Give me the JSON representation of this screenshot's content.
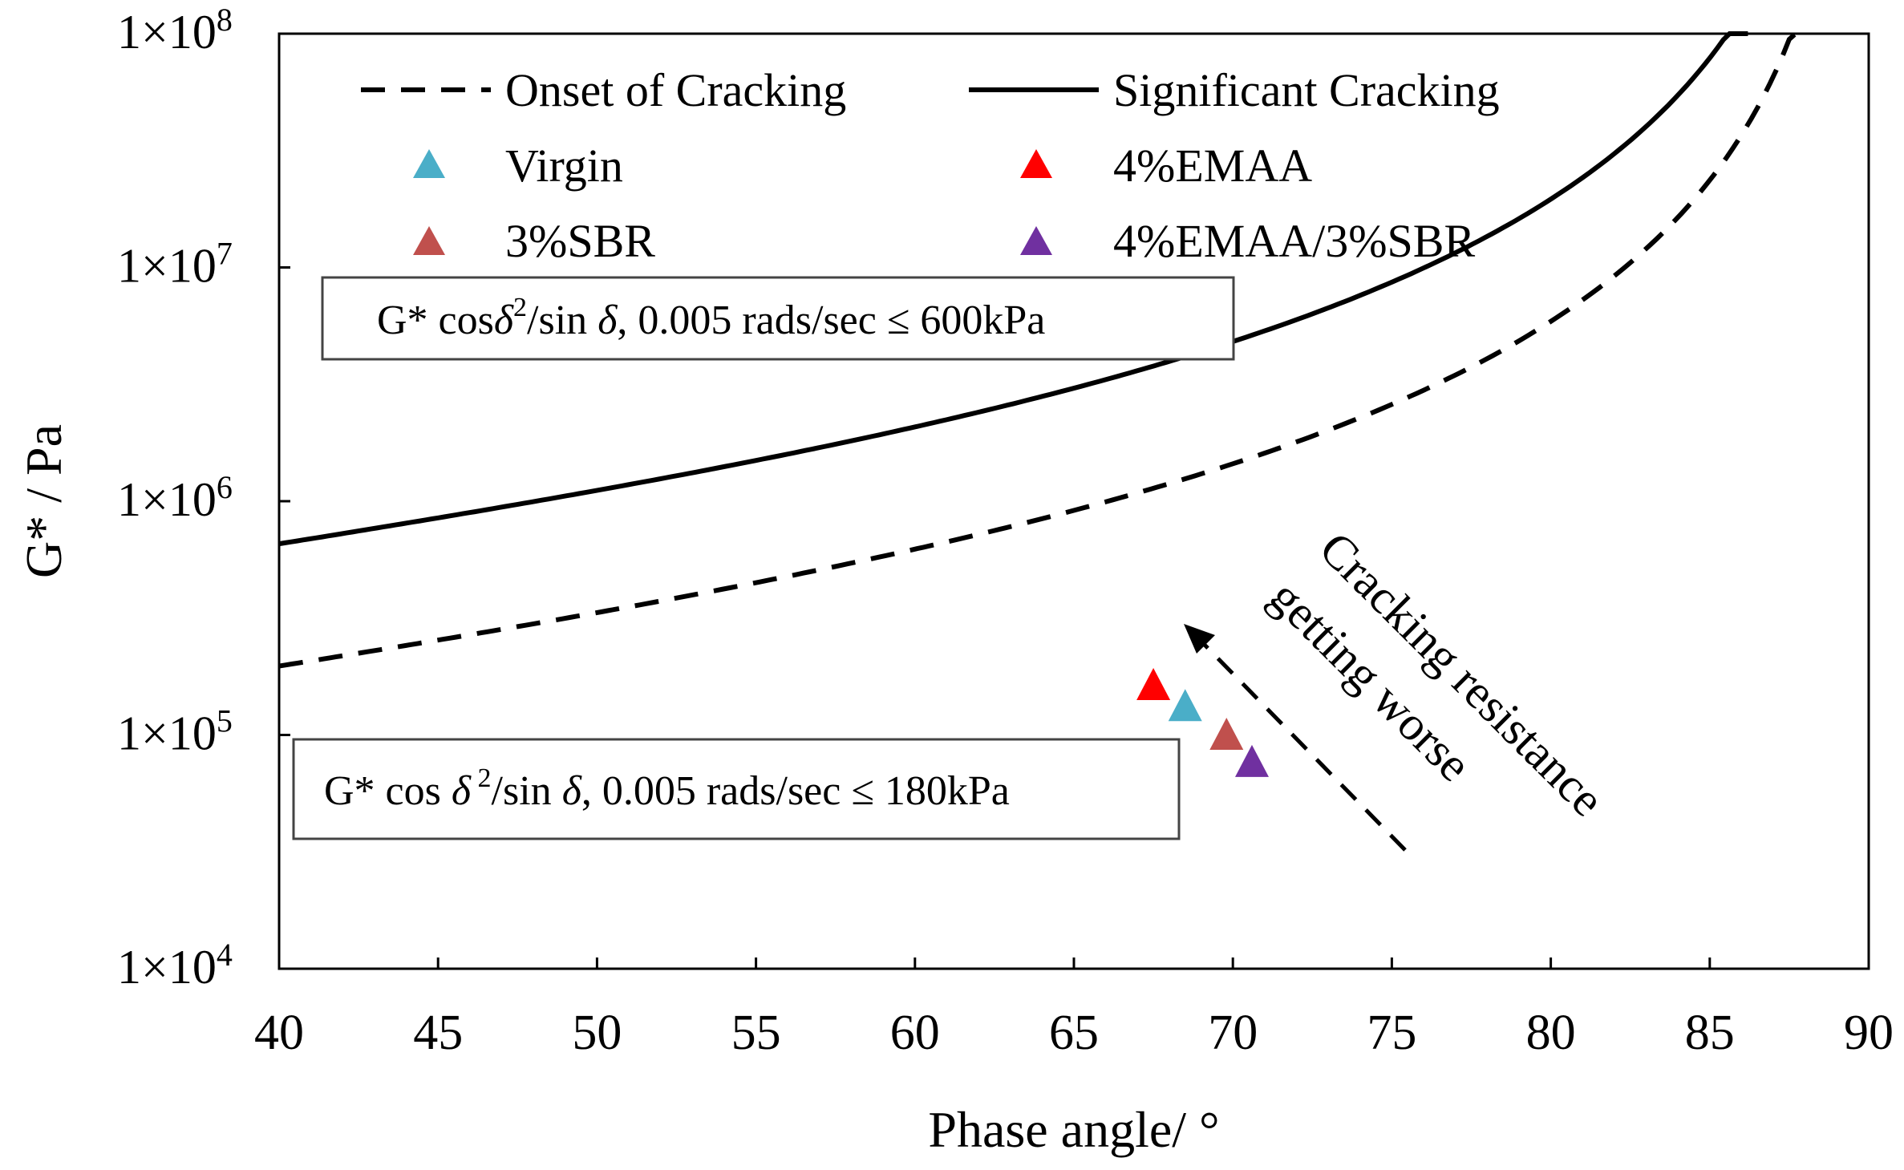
{
  "chart_data": {
    "type": "line",
    "title": "",
    "xlabel": "Phase angle/ °",
    "ylabel": "G* / Pa",
    "xlim": [
      40,
      90
    ],
    "ylim_log10": [
      4,
      8
    ],
    "yscale": "log",
    "x_ticks": [
      "40",
      "45",
      "50",
      "55",
      "60",
      "65",
      "70",
      "75",
      "80",
      "85",
      "90"
    ],
    "y_ticks": [
      {
        "base": "1×10",
        "exp": "4",
        "log10": 4
      },
      {
        "base": "1×10",
        "exp": "5",
        "log10": 5
      },
      {
        "base": "1×10",
        "exp": "6",
        "log10": 6
      },
      {
        "base": "1×10",
        "exp": "7",
        "log10": 7
      },
      {
        "base": "1×10",
        "exp": "8",
        "log10": 8
      }
    ],
    "series": [
      {
        "name": "Onset of Cracking",
        "style": "dashed",
        "color": "#000000",
        "constant_kPa": 180,
        "x_range": [
          40,
          87.7
        ]
      },
      {
        "name": "Significant Cracking",
        "style": "solid",
        "color": "#000000",
        "constant_kPa": 600,
        "x_range": [
          40,
          86.2
        ]
      }
    ],
    "points": [
      {
        "name": "Virgin",
        "x": 68.5,
        "y": 130000,
        "color": "#4aaec8"
      },
      {
        "name": "4%EMAA",
        "x": 67.5,
        "y": 160000,
        "color": "#ff0000"
      },
      {
        "name": "3%SBR",
        "x": 69.8,
        "y": 98000,
        "color": "#c0504d"
      },
      {
        "name": "4%EMAA/3%SBR",
        "x": 70.6,
        "y": 75000,
        "color": "#7030a0"
      }
    ],
    "annotations": {
      "box_upper": {
        "prefix": "G* cos",
        "delta": "δ",
        "sup": "2",
        "mid": "/sin ",
        "delta2": "δ",
        "suffix": ", 0.005 rads/sec ≤ 600kPa"
      },
      "box_lower": {
        "prefix": "G* cos ",
        "delta": "δ",
        "sup": " 2",
        "mid": "/sin ",
        "delta2": "δ",
        "suffix": ", 0.005 rads/sec ≤ 180kPa"
      },
      "arrow_line1": "Cracking resistance",
      "arrow_line2": "getting worse"
    },
    "legend": {
      "placement": "top",
      "entries": [
        {
          "label": "Onset of Cracking",
          "kind": "dashed-line"
        },
        {
          "label": "Significant Cracking",
          "kind": "solid-line"
        },
        {
          "label": "Virgin",
          "kind": "triangle",
          "color": "#4aaec8"
        },
        {
          "label": "4%EMAA",
          "kind": "triangle",
          "color": "#ff0000"
        },
        {
          "label": "3%SBR",
          "kind": "triangle",
          "color": "#c0504d"
        },
        {
          "label": "4%EMAA/3%SBR",
          "kind": "triangle",
          "color": "#7030a0"
        }
      ]
    }
  }
}
